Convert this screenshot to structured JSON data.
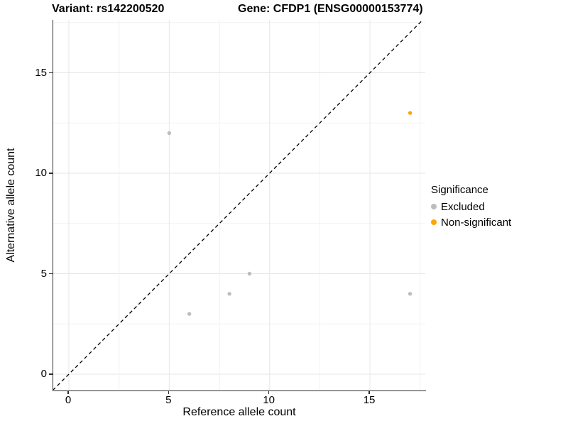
{
  "chart_data": {
    "type": "scatter",
    "title": {
      "left": "Variant: rs142200520",
      "right": "Gene: CFDP1 (ENSG00000153774)"
    },
    "xlabel": "Reference allele count",
    "ylabel": "Alternative allele count",
    "xlim": [
      -0.8,
      17.8
    ],
    "ylim": [
      -0.8,
      17.6
    ],
    "x_major_ticks": [
      0,
      5,
      10,
      15
    ],
    "y_major_ticks": [
      0,
      5,
      10,
      15
    ],
    "x_minor_ticks": [
      2.5,
      7.5,
      12.5,
      17.5
    ],
    "y_minor_ticks": [
      2.5,
      7.5,
      12.5,
      17.5
    ],
    "grid": true,
    "colors": {
      "grid_major": "#e6e6e6",
      "grid_minor": "#f2f2f2",
      "axis_line": "#2e2e2e",
      "excluded": "#bdbdbd",
      "non_significant": "#ffa500",
      "identity_line": "#000000"
    },
    "identity_line": {
      "style": "dashed",
      "equation": "y = x",
      "color": "#000000"
    },
    "series": [
      {
        "name": "Excluded",
        "color": "#bdbdbd",
        "points": [
          [
            5,
            12
          ],
          [
            6,
            3
          ],
          [
            8,
            4
          ],
          [
            9,
            5
          ],
          [
            17,
            4
          ]
        ]
      },
      {
        "name": "Non-significant",
        "color": "#ffa500",
        "points": [
          [
            17,
            13
          ]
        ]
      }
    ],
    "legend": {
      "title": "Significance",
      "position": "right"
    }
  }
}
